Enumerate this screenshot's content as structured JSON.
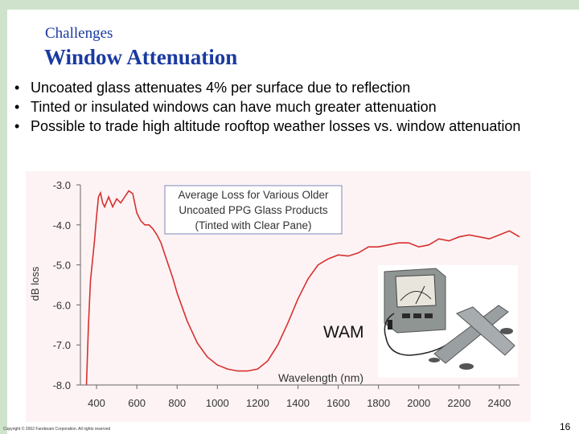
{
  "slide": {
    "kicker": "Challenges",
    "title": "Window Attenuation",
    "bullets": [
      "Uncoated glass attenuates 4% per surface due to reflection",
      "Tinted or insulated windows can have much greater attenuation",
      "Possible to trade high altitude rooftop weather losses vs. window attenuation"
    ],
    "bullet_glyph": "•",
    "copyright": "Copyright © 2002 Farebeam Corporation. All rights reserved",
    "page_number": "16",
    "device_label": "WAM"
  },
  "colors": {
    "heading": "#1a3aa0",
    "frame": "#cfe3cc",
    "plot_background": "#fdf3f4",
    "curve": "#d83030",
    "annotation_border": "#7a88b8"
  },
  "chart_data": {
    "type": "line",
    "title": "",
    "annotation_lines": [
      "Average Loss for Various Older",
      "Uncoated PPG Glass Products",
      "(Tinted with Clear Pane)"
    ],
    "xlabel": "Wavelength (nm)",
    "ylabel": "dB loss",
    "xlim": [
      320,
      2500
    ],
    "ylim": [
      -8.0,
      -3.0
    ],
    "xticks": [
      "400",
      "600",
      "800",
      "1000",
      "1200",
      "1400",
      "1600",
      "1800",
      "2000",
      "2200",
      "2400"
    ],
    "yticks": [
      "-3.0",
      "-4.0",
      "-5.0",
      "-6.0",
      "-7.0",
      "-8.0"
    ],
    "grid": false,
    "series": [
      {
        "x": [
          350,
          360,
          370,
          380,
          390,
          400,
          410,
          420,
          430,
          440,
          460,
          480,
          500,
          520,
          540,
          560,
          580,
          600,
          620,
          640,
          660,
          680,
          700,
          720,
          740,
          760,
          780,
          800,
          850,
          900,
          950,
          1000,
          1050,
          1100,
          1150,
          1200,
          1250,
          1300,
          1350,
          1400,
          1450,
          1500,
          1550,
          1600,
          1650,
          1700,
          1750,
          1800,
          1850,
          1900,
          1950,
          2000,
          2050,
          2100,
          2150,
          2200,
          2250,
          2300,
          2350,
          2400,
          2450,
          2500
        ],
        "y": [
          -8.0,
          -6.5,
          -5.4,
          -4.9,
          -4.4,
          -3.8,
          -3.3,
          -3.2,
          -3.45,
          -3.55,
          -3.3,
          -3.55,
          -3.35,
          -3.45,
          -3.3,
          -3.15,
          -3.22,
          -3.7,
          -3.9,
          -4.0,
          -4.0,
          -4.1,
          -4.25,
          -4.45,
          -4.75,
          -5.05,
          -5.35,
          -5.7,
          -6.4,
          -6.95,
          -7.3,
          -7.5,
          -7.6,
          -7.65,
          -7.65,
          -7.6,
          -7.4,
          -7.0,
          -6.45,
          -5.85,
          -5.35,
          -5.0,
          -4.85,
          -4.75,
          -4.78,
          -4.7,
          -4.55,
          -4.55,
          -4.5,
          -4.45,
          -4.45,
          -4.55,
          -4.5,
          -4.35,
          -4.4,
          -4.3,
          -4.25,
          -4.3,
          -4.35,
          -4.25,
          -4.15,
          -4.3
        ]
      }
    ]
  }
}
